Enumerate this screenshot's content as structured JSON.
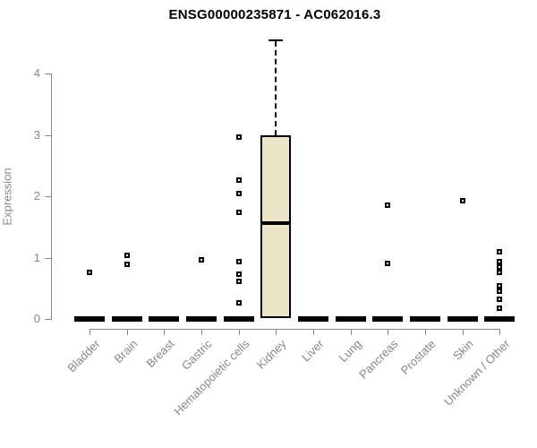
{
  "title": "ENSG00000235871 - AC062016.3",
  "ylabel": "Expression",
  "chart_data": {
    "type": "boxplot",
    "title": "ENSG00000235871 - AC062016.3",
    "xlabel": "",
    "ylabel": "Expression",
    "yticks": [
      0,
      1,
      2,
      3,
      4
    ],
    "ylim": [
      0,
      4.75
    ],
    "grid": false,
    "legend": "none",
    "categories": [
      "Bladder",
      "Brain",
      "Breast",
      "Gastric",
      "Hematopoietic cells",
      "Kidney",
      "Liver",
      "Lung",
      "Pancreas",
      "Prostate",
      "Skin",
      "Unknown / Other"
    ],
    "boxes": [
      {
        "category": "Bladder",
        "q1": 0,
        "median": 0,
        "q3": 0,
        "whisker_low": 0,
        "whisker_high": 0,
        "outliers": [
          0.76
        ]
      },
      {
        "category": "Brain",
        "q1": 0,
        "median": 0,
        "q3": 0,
        "whisker_low": 0,
        "whisker_high": 0,
        "outliers": [
          1.04,
          0.89
        ]
      },
      {
        "category": "Breast",
        "q1": 0,
        "median": 0,
        "q3": 0,
        "whisker_low": 0,
        "whisker_high": 0,
        "outliers": []
      },
      {
        "category": "Gastric",
        "q1": 0,
        "median": 0,
        "q3": 0,
        "whisker_low": 0,
        "whisker_high": 0,
        "outliers": [
          0.97
        ]
      },
      {
        "category": "Hematopoietic cells",
        "q1": 0,
        "median": 0,
        "q3": 0,
        "whisker_low": 0,
        "whisker_high": 0,
        "outliers": [
          2.96,
          2.26,
          2.05,
          1.74,
          0.94,
          0.73,
          0.62,
          0.26
        ]
      },
      {
        "category": "Kidney",
        "q1": 0.02,
        "median": 1.56,
        "q3": 3.0,
        "whisker_low": 0,
        "whisker_high": 4.56,
        "outliers": []
      },
      {
        "category": "Liver",
        "q1": 0,
        "median": 0,
        "q3": 0,
        "whisker_low": 0,
        "whisker_high": 0,
        "outliers": []
      },
      {
        "category": "Lung",
        "q1": 0,
        "median": 0,
        "q3": 0,
        "whisker_low": 0,
        "whisker_high": 0,
        "outliers": []
      },
      {
        "category": "Pancreas",
        "q1": 0,
        "median": 0,
        "q3": 0,
        "whisker_low": 0,
        "whisker_high": 0,
        "outliers": [
          1.86,
          0.91
        ]
      },
      {
        "category": "Prostate",
        "q1": 0,
        "median": 0,
        "q3": 0,
        "whisker_low": 0,
        "whisker_high": 0,
        "outliers": []
      },
      {
        "category": "Skin",
        "q1": 0,
        "median": 0,
        "q3": 0,
        "whisker_low": 0,
        "whisker_high": 0,
        "outliers": [
          1.93
        ]
      },
      {
        "category": "Unknown / Other",
        "q1": 0,
        "median": 0,
        "q3": 0,
        "whisker_low": 0,
        "whisker_high": 0,
        "outliers": [
          1.09,
          0.93,
          0.84,
          0.76,
          0.54,
          0.45,
          0.32,
          0.17
        ]
      }
    ],
    "colors": {
      "box_fill": "#EDE5CA",
      "box_border": "#000000",
      "median": "#000000",
      "whisker": "#000000",
      "outlier": "#000000",
      "axis": "#878787",
      "tick_label": "#878787",
      "title": "#000000",
      "background": "#ffffff"
    }
  }
}
